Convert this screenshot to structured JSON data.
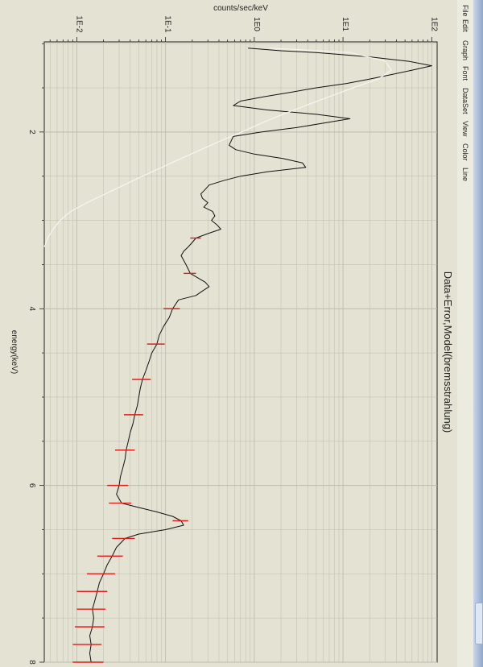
{
  "menu": {
    "items": [
      "File",
      "Edit",
      "Graph",
      "Font",
      "DataSet",
      "View",
      "Color",
      "Line"
    ]
  },
  "colors": {
    "background": "#e4e2d2",
    "data": "#111111",
    "error": "#dd1f1f",
    "model": "#f6f6f0",
    "grid": "#bdbcad"
  },
  "chart_data": {
    "type": "line",
    "title": "Data+Error,Model(bremsstrahlung)",
    "xlabel": "energy(keV)",
    "ylabel": "counts/sec/keV",
    "xlim": [
      0.98,
      8.0
    ],
    "ylim": [
      0.0043,
      115
    ],
    "x_scale": "linear",
    "y_scale": "log",
    "x_ticks": [
      "2",
      "4",
      "6",
      "8"
    ],
    "y_ticks": [
      "1E-2",
      "1E-1",
      "1E0",
      "1E1",
      "1E2"
    ],
    "grid": true,
    "orientation": "rotated 90° clockwise (energy increases downward, counts increase rightward)",
    "series": [
      {
        "name": "Data",
        "style": "line",
        "color": "#111111",
        "x": [
          1.05,
          1.08,
          1.1,
          1.15,
          1.2,
          1.25,
          1.3,
          1.35,
          1.4,
          1.45,
          1.5,
          1.55,
          1.6,
          1.65,
          1.7,
          1.75,
          1.8,
          1.85,
          1.9,
          1.95,
          2.0,
          2.05,
          2.1,
          2.15,
          2.2,
          2.25,
          2.3,
          2.35,
          2.4,
          2.45,
          2.5,
          2.55,
          2.6,
          2.65,
          2.7,
          2.75,
          2.8,
          2.85,
          2.9,
          2.95,
          3.0,
          3.05,
          3.1,
          3.15,
          3.2,
          3.25,
          3.3,
          3.35,
          3.4,
          3.5,
          3.6,
          3.7,
          3.75,
          3.8,
          3.85,
          3.9,
          4.0,
          4.1,
          4.2,
          4.3,
          4.4,
          4.5,
          4.6,
          4.7,
          4.8,
          4.9,
          5.0,
          5.1,
          5.2,
          5.3,
          5.4,
          5.5,
          5.6,
          5.7,
          5.8,
          5.9,
          6.0,
          6.1,
          6.2,
          6.25,
          6.3,
          6.35,
          6.4,
          6.45,
          6.5,
          6.55,
          6.6,
          6.7,
          6.8,
          6.9,
          7.0,
          7.1,
          7.2,
          7.3,
          7.4,
          7.5,
          7.6,
          7.7,
          7.8,
          7.9,
          8.0
        ],
        "y": [
          0.85,
          2.0,
          5.0,
          20.0,
          55.0,
          100.0,
          60.0,
          35.0,
          20.0,
          11.0,
          5.0,
          2.6,
          1.3,
          0.7,
          0.58,
          1.4,
          5.0,
          12.0,
          6.0,
          3.0,
          1.2,
          0.58,
          0.55,
          0.52,
          0.62,
          1.0,
          2.1,
          3.5,
          3.8,
          1.4,
          0.7,
          0.45,
          0.31,
          0.28,
          0.25,
          0.26,
          0.3,
          0.27,
          0.34,
          0.36,
          0.33,
          0.38,
          0.42,
          0.3,
          0.22,
          0.2,
          0.18,
          0.16,
          0.15,
          0.17,
          0.19,
          0.28,
          0.31,
          0.26,
          0.22,
          0.14,
          0.12,
          0.11,
          0.095,
          0.085,
          0.08,
          0.07,
          0.065,
          0.06,
          0.055,
          0.052,
          0.05,
          0.048,
          0.045,
          0.043,
          0.04,
          0.038,
          0.036,
          0.035,
          0.033,
          0.031,
          0.03,
          0.028,
          0.032,
          0.05,
          0.08,
          0.12,
          0.15,
          0.16,
          0.1,
          0.05,
          0.035,
          0.028,
          0.025,
          0.022,
          0.02,
          0.018,
          0.017,
          0.016,
          0.015,
          0.0155,
          0.015,
          0.014,
          0.0145,
          0.014,
          0.0145
        ]
      },
      {
        "name": "Error",
        "style": "errorbar",
        "color": "#dd1f1f",
        "x": [
          3.2,
          3.6,
          4.0,
          4.4,
          4.8,
          5.2,
          5.6,
          6.0,
          6.2,
          6.4,
          6.6,
          6.8,
          7.0,
          7.2,
          7.4,
          7.6,
          7.8,
          8.0
        ],
        "y": [
          0.22,
          0.19,
          0.12,
          0.08,
          0.055,
          0.045,
          0.036,
          0.03,
          0.032,
          0.15,
          0.035,
          0.025,
          0.02,
          0.016,
          0.0155,
          0.015,
          0.014,
          0.0145
        ],
        "err": [
          0.03,
          0.03,
          0.025,
          0.018,
          0.013,
          0.011,
          0.009,
          0.008,
          0.009,
          0.03,
          0.01,
          0.008,
          0.007,
          0.006,
          0.0055,
          0.0055,
          0.005,
          0.0055
        ]
      },
      {
        "name": "Model",
        "style": "line",
        "color": "#f6f6f0",
        "x": [
          1.05,
          1.1,
          1.2,
          1.3,
          1.4,
          1.5,
          1.6,
          1.7,
          1.8,
          1.9,
          2.0,
          2.1,
          2.2,
          2.3,
          2.4,
          2.5,
          2.6,
          2.7,
          2.8,
          2.9,
          3.0,
          3.1,
          3.2,
          3.3
        ],
        "y": [
          1.5,
          12.0,
          30.0,
          35.0,
          25.0,
          13.0,
          7.0,
          3.8,
          2.1,
          1.2,
          0.72,
          0.42,
          0.25,
          0.15,
          0.09,
          0.055,
          0.034,
          0.021,
          0.013,
          0.0085,
          0.0065,
          0.0054,
          0.0047,
          0.0043
        ]
      }
    ]
  }
}
